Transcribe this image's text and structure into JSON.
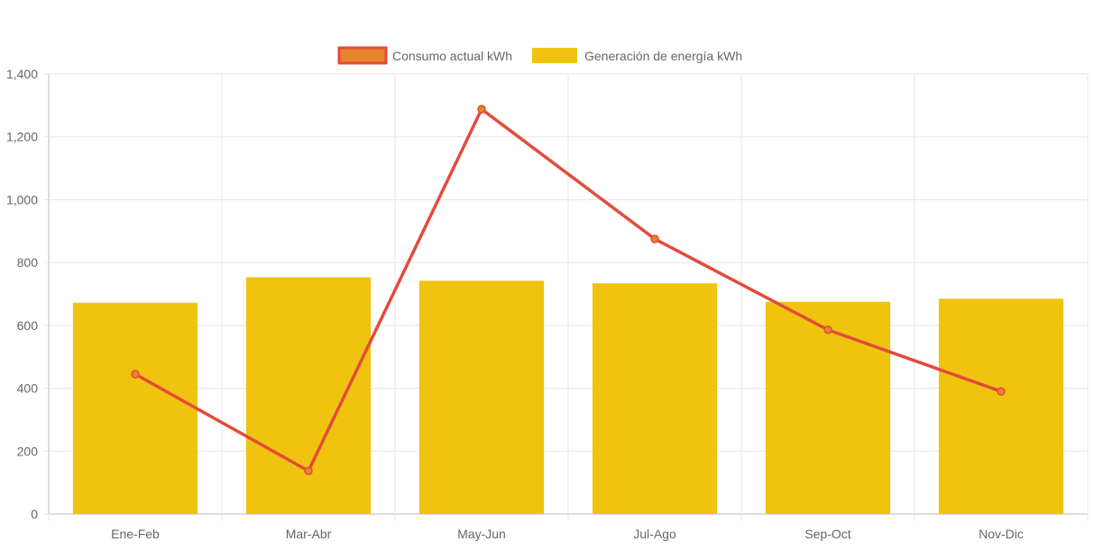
{
  "chart_data": {
    "type": "bar",
    "categories": [
      "Ene-Feb",
      "Mar-Abr",
      "May-Jun",
      "Jul-Ago",
      "Sep-Oct",
      "Nov-Dic"
    ],
    "ylim": [
      0,
      1400
    ],
    "yticks": [
      0,
      200,
      400,
      600,
      800,
      1000,
      1200,
      1400
    ],
    "ytick_labels": [
      "0",
      "200",
      "400",
      "600",
      "800",
      "1,000",
      "1,200",
      "1,400"
    ],
    "title": "",
    "xlabel": "",
    "ylabel": "",
    "grid": true,
    "legend_position": "top-center",
    "series": [
      {
        "name": "Consumo actual kWh",
        "type": "line",
        "values": [
          445,
          137,
          1288,
          875,
          586,
          390
        ],
        "color": "#e34b3a",
        "fill_color": "#e6862a"
      },
      {
        "name": "Generación de energía kWh",
        "type": "bar",
        "values": [
          672,
          753,
          742,
          734,
          675,
          685
        ],
        "color": "#f0c40e"
      }
    ]
  }
}
